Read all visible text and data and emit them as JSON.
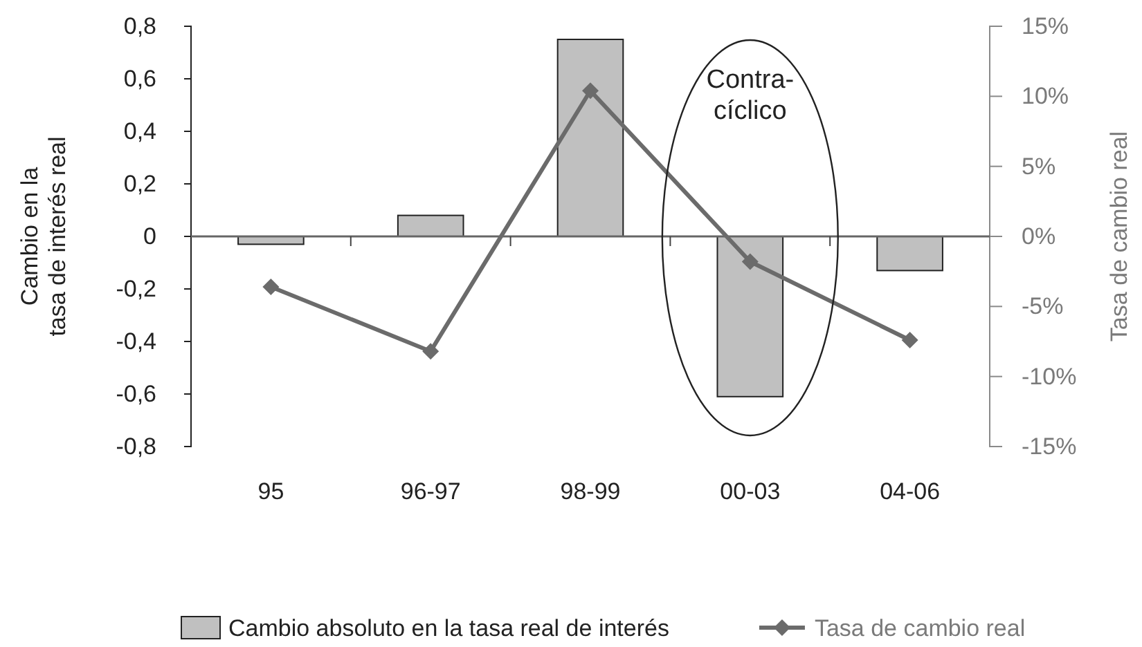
{
  "chart_data": {
    "type": "bar",
    "categories": [
      "95",
      "96-97",
      "98-99",
      "00-03",
      "04-06"
    ],
    "series": [
      {
        "name": "Cambio absoluto en la tasa real de interés",
        "color": "#c0c0c0",
        "values": [
          -0.03,
          0.08,
          0.75,
          -0.61,
          -0.13
        ]
      },
      {
        "name": "Tasa de cambio real",
        "type": "line",
        "axis": "y2",
        "color": "#6b6b6b",
        "values": [
          -3.6,
          -8.2,
          10.4,
          -1.8,
          -7.4
        ]
      }
    ],
    "ylabel": "Cambio en la\ntasa de interés real",
    "y2label": "Tasa de cambio real",
    "ylim": [
      -0.8,
      0.8
    ],
    "yticks": [
      {
        "value": -0.8,
        "label": "-0,8"
      },
      {
        "value": -0.6,
        "label": "-0,6"
      },
      {
        "value": -0.4,
        "label": "-0,4"
      },
      {
        "value": -0.2,
        "label": "-0,2"
      },
      0,
      {
        "value": 0.2,
        "label": "0,2"
      },
      {
        "value": 0.4,
        "label": "0,4"
      },
      {
        "value": 0.6,
        "label": "0,6"
      },
      {
        "value": 0.8,
        "label": "0,8"
      }
    ],
    "y2lim": [
      -15,
      15
    ],
    "y2ticks": [
      {
        "value": -15,
        "label": "-15%"
      },
      {
        "value": -10,
        "label": "-10%"
      },
      {
        "value": -5,
        "label": "-5%"
      },
      {
        "value": 0,
        "label": "0%"
      },
      {
        "value": 5,
        "label": "5%"
      },
      {
        "value": 10,
        "label": "10%"
      },
      {
        "value": 15,
        "label": "15%"
      }
    ],
    "annotations": [
      "Contra-\ncíclico"
    ],
    "legend": "bottom",
    "marker": "diamond",
    "line_style": "solid"
  }
}
